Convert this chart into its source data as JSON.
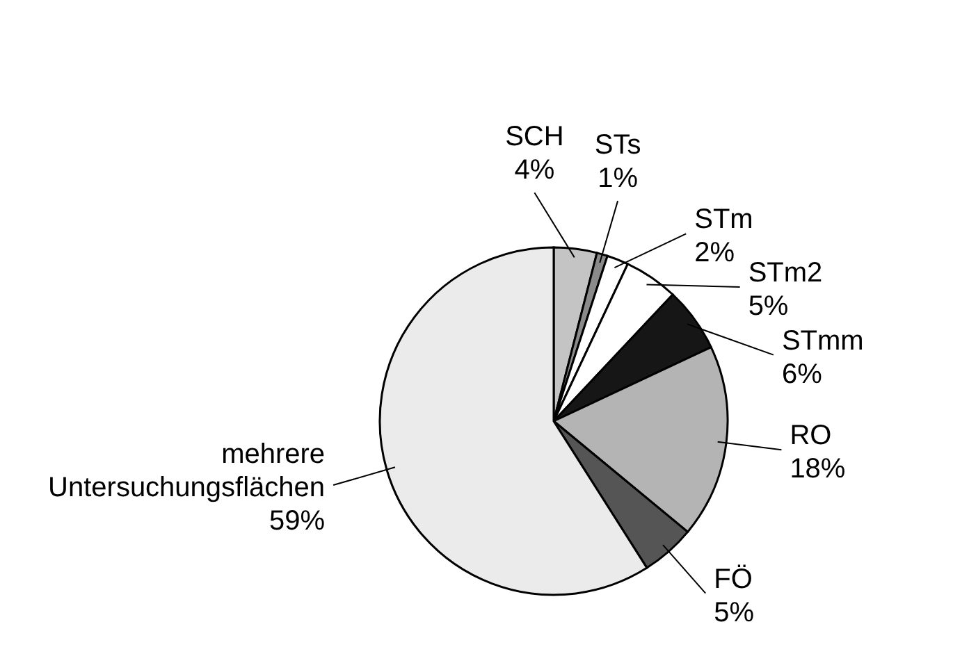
{
  "chart_data": {
    "type": "pie",
    "categories": [
      "SCH",
      "STs",
      "STm",
      "STm2",
      "STmm",
      "RO",
      "FÖ",
      "mehrere Untersuchungsflächen"
    ],
    "values": [
      4,
      1,
      2,
      5,
      6,
      18,
      5,
      59
    ],
    "value_labels": [
      "4%",
      "1%",
      "2%",
      "5%",
      "6%",
      "18%",
      "5%",
      "59%"
    ],
    "colors": [
      "#c4c4c4",
      "#8a8a8a",
      "#ffffff",
      "#ffffff",
      "#161616",
      "#b4b4b4",
      "#555555",
      "#ebebeb"
    ]
  }
}
